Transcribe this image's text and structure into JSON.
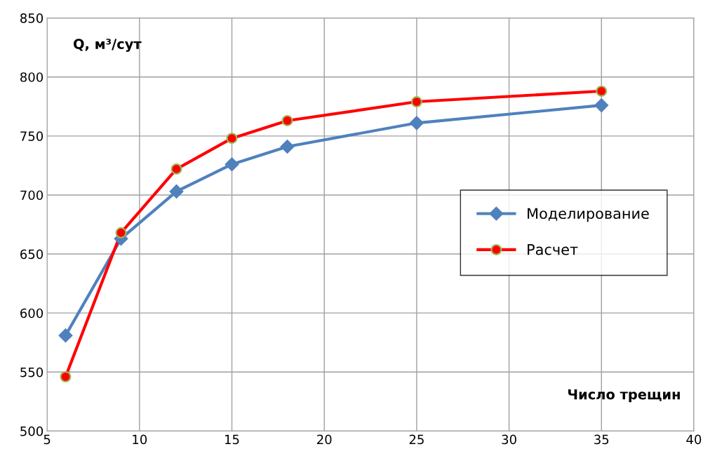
{
  "chart_data": {
    "type": "line",
    "xlabel": "Число трещин",
    "ylabel": "Q, м³/сут",
    "x": [
      6,
      9,
      12,
      15,
      18,
      25,
      35
    ],
    "series": [
      {
        "name": "Моделирование",
        "color": "#4f81bd",
        "marker": "diamond",
        "values": [
          581,
          663,
          703,
          726,
          741,
          761,
          776
        ]
      },
      {
        "name": "Расчет",
        "color": "#ff0000",
        "marker": "circle",
        "values": [
          546,
          668,
          722,
          748,
          763,
          779,
          788
        ]
      }
    ],
    "xlim": [
      5,
      40
    ],
    "xticks": [
      5,
      10,
      15,
      20,
      25,
      30,
      35,
      40
    ],
    "ylim": [
      500,
      850
    ],
    "yticks": [
      500,
      550,
      600,
      650,
      700,
      750,
      800,
      850
    ],
    "grid": true,
    "legend": "right",
    "line_style": "solid"
  }
}
